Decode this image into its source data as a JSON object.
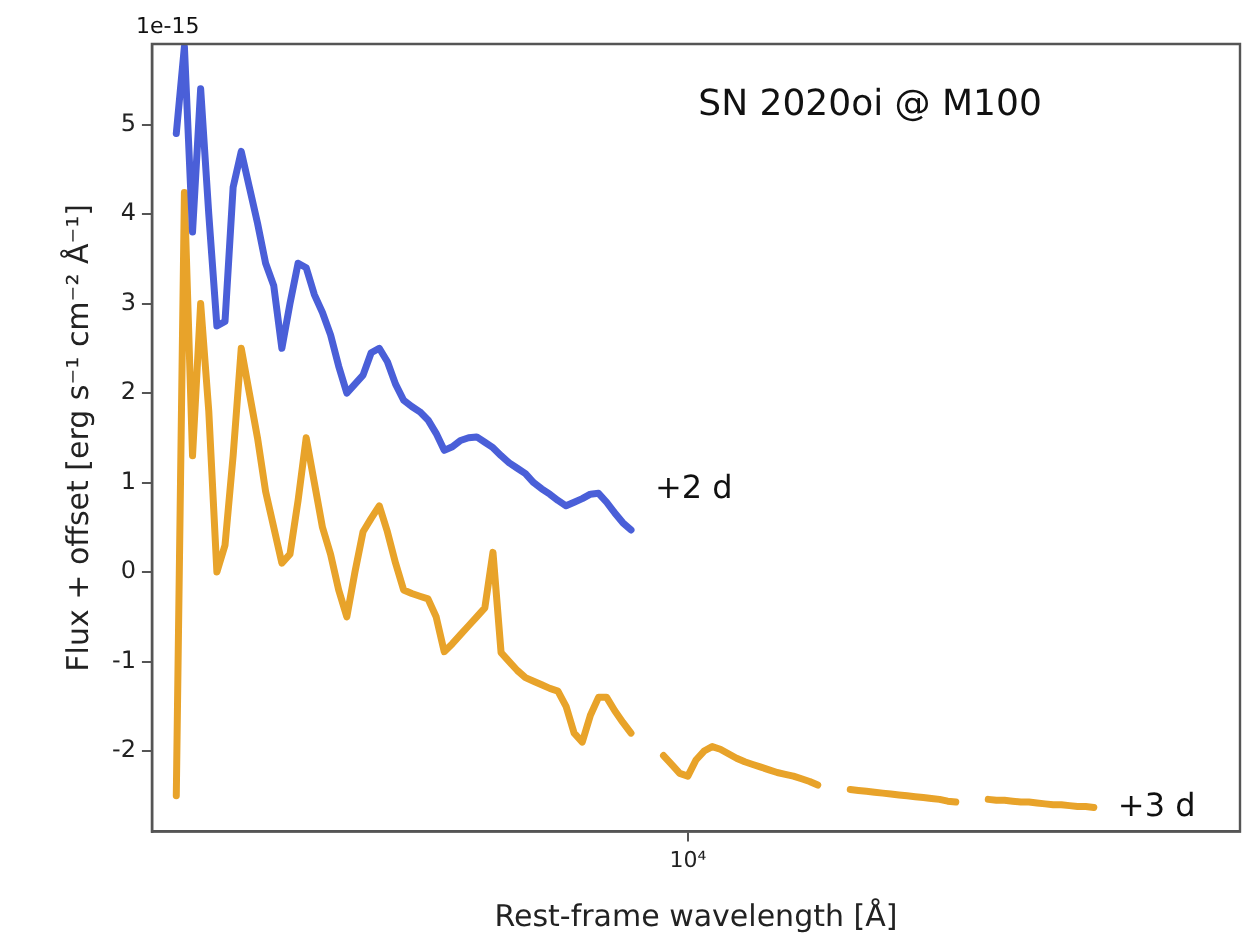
{
  "chart_data": {
    "type": "line",
    "title": "SN 2020oi @ M100",
    "xlabel": "Rest-frame wavelength [Å]",
    "ylabel": "Flux + offset [erg s⁻¹ cm⁻² Å⁻¹]",
    "annotations": [
      "1e-15"
    ],
    "grid": false,
    "legend": false,
    "marker": "none",
    "line_style": "solid",
    "categories": [
      null,
      null,
      null,
      null,
      null,
      null,
      null,
      null,
      null,
      null,
      null,
      null,
      null,
      null,
      null,
      null,
      null,
      null,
      null,
      null,
      null,
      null,
      null,
      null,
      null,
      null,
      null,
      null,
      null,
      null,
      null,
      null,
      null,
      null,
      null,
      null,
      null,
      null,
      null,
      null,
      null,
      null,
      null,
      null,
      null,
      null,
      null,
      null,
      null,
      null,
      null,
      null,
      null,
      null,
      null,
      null,
      null,
      null,
      null,
      null,
      null,
      null,
      null,
      null,
      null,
      null,
      "10⁴",
      null,
      null,
      null,
      null,
      null,
      null,
      null,
      null,
      null,
      null,
      null,
      null,
      null,
      null,
      null,
      null,
      null,
      null,
      null,
      null,
      null,
      null,
      null,
      null,
      null,
      null,
      null,
      null,
      null,
      null,
      null,
      null,
      null,
      null,
      null,
      null,
      null,
      null,
      null,
      null,
      null,
      null,
      null,
      null,
      null,
      null,
      null,
      null,
      null,
      null,
      null,
      null,
      null,
      null,
      null,
      null,
      null,
      null,
      null,
      null,
      null,
      null,
      null,
      null,
      null,
      null,
      null,
      null
    ],
    "ylim": [
      -2.9,
      5.9
    ],
    "yticks": [
      -2,
      -1,
      0,
      1,
      2,
      3,
      4,
      5
    ],
    "series": [
      {
        "name": "+2 d",
        "color": "#4a5fd8",
        "values": [
          null,
          null,
          null,
          4.9,
          5.87,
          3.8,
          5.4,
          4.0,
          2.75,
          2.8,
          4.3,
          4.7,
          4.3,
          3.9,
          3.45,
          3.2,
          2.5,
          3.0,
          3.45,
          3.4,
          3.1,
          2.9,
          2.65,
          2.3,
          2.0,
          2.1,
          2.2,
          2.45,
          2.5,
          2.35,
          2.1,
          1.92,
          1.85,
          1.79,
          1.7,
          1.55,
          1.36,
          1.4,
          1.47,
          1.5,
          1.51,
          1.45,
          1.39,
          1.3,
          1.22,
          1.16,
          1.1,
          1.0,
          0.93,
          0.87,
          0.8,
          0.74,
          0.78,
          0.82,
          0.87,
          0.88,
          0.78,
          0.66,
          0.55,
          0.47,
          null,
          null,
          null,
          null,
          null,
          null,
          null,
          null,
          null,
          null,
          null,
          null,
          null,
          null,
          null,
          null,
          null,
          null,
          null,
          null,
          null,
          null,
          null,
          null,
          null,
          null,
          null,
          null,
          null,
          null,
          null,
          null,
          null,
          null,
          null,
          null,
          null,
          null,
          null,
          null,
          null,
          null,
          null,
          null,
          null,
          null,
          null,
          null,
          null,
          null,
          null,
          null,
          null,
          null,
          null,
          null,
          null,
          null,
          null,
          null,
          null,
          null,
          null,
          null,
          null,
          null,
          null,
          null,
          null,
          null,
          null,
          null,
          null,
          null,
          null
        ]
      },
      {
        "name": "+3 d",
        "color": "#e8a32a",
        "values": [
          null,
          null,
          null,
          -2.5,
          4.24,
          1.3,
          3.0,
          1.8,
          0.0,
          0.3,
          1.3,
          2.5,
          2.0,
          1.5,
          0.9,
          0.5,
          0.1,
          0.2,
          0.8,
          1.5,
          1.0,
          0.5,
          0.2,
          -0.2,
          -0.5,
          0.0,
          0.45,
          0.6,
          0.74,
          0.45,
          0.1,
          -0.2,
          -0.24,
          -0.27,
          -0.3,
          -0.5,
          -0.89,
          -0.8,
          -0.7,
          -0.6,
          -0.5,
          -0.4,
          0.22,
          -0.9,
          -1.0,
          -1.1,
          -1.18,
          -1.22,
          -1.26,
          -1.3,
          -1.33,
          -1.5,
          -1.8,
          -1.9,
          -1.6,
          -1.4,
          -1.4,
          -1.55,
          -1.68,
          -1.8,
          null,
          null,
          null,
          -2.05,
          -2.15,
          -2.25,
          -2.28,
          -2.1,
          -2.0,
          -1.95,
          -1.98,
          -2.03,
          -2.08,
          -2.12,
          -2.15,
          -2.18,
          -2.21,
          -2.24,
          -2.26,
          -2.28,
          -2.31,
          -2.34,
          -2.38,
          null,
          null,
          null,
          -2.43,
          -2.44,
          -2.45,
          -2.46,
          -2.47,
          -2.48,
          -2.49,
          -2.5,
          -2.51,
          -2.52,
          -2.53,
          -2.54,
          -2.56,
          -2.57,
          null,
          null,
          null,
          -2.54,
          -2.55,
          -2.55,
          -2.56,
          -2.57,
          -2.57,
          -2.58,
          -2.59,
          -2.6,
          -2.6,
          -2.61,
          -2.62,
          -2.62,
          -2.63,
          null,
          null,
          null,
          null,
          null,
          null,
          null,
          null,
          null,
          null,
          null,
          null,
          null,
          null,
          null,
          null,
          null,
          null
        ]
      }
    ]
  }
}
